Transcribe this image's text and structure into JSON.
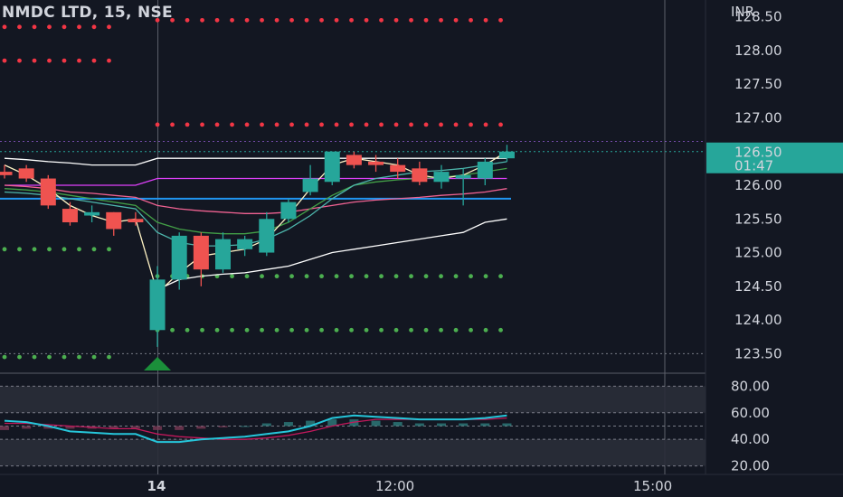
{
  "header": {
    "title": "NMDC LTD, 15, NSE"
  },
  "price_axis": {
    "currency_label": "INR",
    "ticks": [
      "128.50",
      "128.00",
      "127.50",
      "127.00",
      "126.50",
      "126.00",
      "125.50",
      "125.00",
      "124.50",
      "124.00",
      "123.50"
    ],
    "last_price": "126.50",
    "countdown": "01:47"
  },
  "osc_axis": {
    "ticks": [
      "80.00",
      "60.00",
      "40.00",
      "20.00"
    ]
  },
  "time_axis": {
    "ticks": [
      "14",
      "12:00",
      "15:00"
    ]
  },
  "colors": {
    "background": "#131722",
    "up": "#26a69a",
    "down": "#ef5350",
    "text": "#d1d4dc",
    "pivot_red": "#f23645",
    "pivot_green": "#4caf50",
    "vwap_blue": "#2196f3",
    "magenta": "#e040fb",
    "osc_cyan": "#26c6da"
  },
  "chart_data": {
    "type": "candlestick",
    "title": "NMDC LTD, 15, NSE",
    "interval": "15",
    "ylim": [
      123.25,
      128.75
    ],
    "candles": [
      {
        "o": 126.2,
        "h": 126.3,
        "l": 126.1,
        "c": 126.15
      },
      {
        "o": 126.25,
        "h": 126.3,
        "l": 126.05,
        "c": 126.1
      },
      {
        "o": 126.1,
        "h": 126.15,
        "l": 125.65,
        "c": 125.7
      },
      {
        "o": 125.65,
        "h": 125.75,
        "l": 125.4,
        "c": 125.45
      },
      {
        "o": 125.55,
        "h": 125.7,
        "l": 125.45,
        "c": 125.6
      },
      {
        "o": 125.6,
        "h": 125.6,
        "l": 125.25,
        "c": 125.35
      },
      {
        "o": 125.5,
        "h": 125.6,
        "l": 125.4,
        "c": 125.45
      },
      {
        "o": 123.85,
        "h": 124.8,
        "l": 123.6,
        "c": 124.6
      },
      {
        "o": 124.6,
        "h": 125.3,
        "l": 124.45,
        "c": 125.25
      },
      {
        "o": 125.25,
        "h": 125.3,
        "l": 124.5,
        "c": 124.75
      },
      {
        "o": 124.75,
        "h": 125.3,
        "l": 124.7,
        "c": 125.2
      },
      {
        "o": 125.05,
        "h": 125.25,
        "l": 124.95,
        "c": 125.2
      },
      {
        "o": 125.0,
        "h": 125.6,
        "l": 124.95,
        "c": 125.5
      },
      {
        "o": 125.5,
        "h": 125.8,
        "l": 125.45,
        "c": 125.75
      },
      {
        "o": 125.9,
        "h": 126.3,
        "l": 125.85,
        "c": 126.1
      },
      {
        "o": 126.05,
        "h": 126.5,
        "l": 126.0,
        "c": 126.5
      },
      {
        "o": 126.45,
        "h": 126.5,
        "l": 126.25,
        "c": 126.3
      },
      {
        "o": 126.35,
        "h": 126.45,
        "l": 126.2,
        "c": 126.3
      },
      {
        "o": 126.3,
        "h": 126.4,
        "l": 126.1,
        "c": 126.2
      },
      {
        "o": 126.25,
        "h": 126.35,
        "l": 126.0,
        "c": 126.05
      },
      {
        "o": 126.05,
        "h": 126.3,
        "l": 125.95,
        "c": 126.2
      },
      {
        "o": 126.1,
        "h": 126.25,
        "l": 125.7,
        "c": 126.15
      },
      {
        "o": 126.1,
        "h": 126.4,
        "l": 126.0,
        "c": 126.35
      },
      {
        "o": 126.4,
        "h": 126.6,
        "l": 126.35,
        "c": 126.5
      }
    ],
    "session_break_index": 7,
    "signal_marker": {
      "index": 7,
      "type": "up-arrow"
    },
    "pivot_levels_red": [
      {
        "value": 128.35,
        "from": 0,
        "to": 5
      },
      {
        "value": 127.85,
        "from": 0,
        "to": 5
      },
      {
        "value": 128.45,
        "from": 7,
        "to": 23
      },
      {
        "value": 126.9,
        "from": 7,
        "to": 23
      }
    ],
    "pivot_levels_green": [
      {
        "value": 125.05,
        "from": 0,
        "to": 5
      },
      {
        "value": 123.45,
        "from": 0,
        "to": 5
      },
      {
        "value": 124.65,
        "from": 7,
        "to": 23
      },
      {
        "value": 123.85,
        "from": 7,
        "to": 23
      }
    ],
    "horizontal_lines": [
      {
        "value": 125.8,
        "color": "#2196f3"
      }
    ],
    "lines": [
      {
        "name": "white-band-upper",
        "color": "#ffffff",
        "values": [
          126.4,
          126.38,
          126.35,
          126.33,
          126.3,
          126.3,
          126.3,
          126.4,
          126.4,
          126.4,
          126.4,
          126.4,
          126.4,
          126.4,
          126.4,
          126.4,
          126.4,
          126.4,
          126.4,
          126.4,
          126.4,
          126.4,
          126.4,
          126.4
        ]
      },
      {
        "name": "white-band-lower",
        "color": "#ffffff",
        "values": [
          null,
          null,
          null,
          null,
          null,
          null,
          null,
          124.45,
          124.6,
          124.65,
          124.68,
          124.7,
          124.75,
          124.8,
          124.9,
          125.0,
          125.05,
          125.1,
          125.15,
          125.2,
          125.25,
          125.3,
          125.45,
          125.5
        ]
      },
      {
        "name": "magenta",
        "color": "#e040fb",
        "values": [
          126.0,
          126.0,
          126.0,
          126.0,
          126.0,
          126.0,
          126.0,
          126.1,
          126.1,
          126.1,
          126.1,
          126.1,
          126.1,
          126.1,
          126.1,
          126.1,
          126.1,
          126.1,
          126.1,
          126.1,
          126.1,
          126.1,
          126.1,
          126.1
        ]
      },
      {
        "name": "pink",
        "color": "#f06292",
        "values": [
          126.0,
          125.98,
          125.95,
          125.9,
          125.88,
          125.85,
          125.82,
          125.7,
          125.65,
          125.62,
          125.6,
          125.58,
          125.58,
          125.6,
          125.65,
          125.7,
          125.75,
          125.78,
          125.8,
          125.82,
          125.85,
          125.87,
          125.9,
          125.95
        ]
      },
      {
        "name": "green-ma",
        "color": "#43a047",
        "values": [
          125.95,
          125.93,
          125.9,
          125.85,
          125.8,
          125.75,
          125.7,
          125.45,
          125.35,
          125.3,
          125.28,
          125.28,
          125.32,
          125.45,
          125.65,
          125.85,
          126.0,
          126.05,
          126.08,
          126.1,
          126.12,
          126.15,
          126.2,
          126.25
        ]
      },
      {
        "name": "teal-ma",
        "color": "#4db6ac",
        "values": [
          125.9,
          125.88,
          125.85,
          125.8,
          125.75,
          125.7,
          125.65,
          125.3,
          125.15,
          125.1,
          125.1,
          125.12,
          125.2,
          125.35,
          125.55,
          125.8,
          126.0,
          126.1,
          126.15,
          126.2,
          126.22,
          126.25,
          126.3,
          126.35
        ]
      },
      {
        "name": "cream",
        "color": "#fff3c4",
        "values": [
          126.3,
          126.15,
          125.95,
          125.7,
          125.55,
          125.45,
          125.5,
          124.4,
          124.7,
          124.95,
          125.0,
          125.05,
          125.2,
          125.55,
          125.95,
          126.3,
          126.4,
          126.35,
          126.3,
          126.15,
          126.1,
          126.15,
          126.3,
          126.5
        ]
      }
    ],
    "oscillator": {
      "ylim": [
        17,
        85
      ],
      "bands": [
        [
          60,
          80
        ],
        [
          20,
          40
        ]
      ],
      "levels": [
        60,
        50,
        40
      ],
      "rsi": [
        54,
        53,
        50,
        46,
        45,
        44,
        44,
        38,
        38,
        40,
        41,
        42,
        44,
        46,
        50,
        56,
        58,
        57,
        56,
        55,
        55,
        55,
        56,
        58
      ],
      "signal": [
        52,
        52,
        51,
        50,
        49,
        48,
        48,
        44,
        42,
        41,
        40,
        40,
        41,
        43,
        46,
        50,
        53,
        55,
        55,
        55,
        55,
        55,
        55,
        56
      ],
      "histogram": [
        -3,
        -2,
        -2,
        -2,
        -2,
        -2,
        -2,
        -3,
        -3,
        -2,
        -1,
        0,
        2,
        3,
        4,
        5,
        5,
        4,
        3,
        2,
        2,
        2,
        2,
        2
      ]
    }
  }
}
